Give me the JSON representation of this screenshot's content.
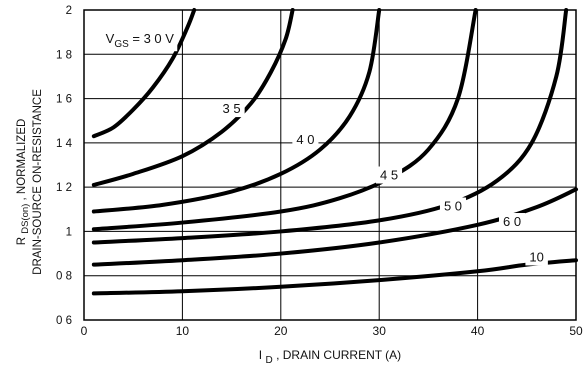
{
  "chart_data": {
    "type": "line",
    "title": "",
    "xlabel": {
      "prefix": "I",
      "subscript": "D",
      "rest": ", DRAIN CURRENT (A)"
    },
    "ylabel": {
      "line1_prefix": "R",
      "line1_subscript": "DS(on)",
      "line1_rest": ", NORMALIZED",
      "line2": "DRAIN-SOURCE ON-RESISTANCE"
    },
    "xlim": [
      0,
      50
    ],
    "ylim": [
      0.6,
      2.0
    ],
    "x_ticks": [
      {
        "value": 0,
        "label": "0"
      },
      {
        "value": 10,
        "label": "10"
      },
      {
        "value": 20,
        "label": "20"
      },
      {
        "value": 30,
        "label": "30"
      },
      {
        "value": 40,
        "label": "40"
      },
      {
        "value": 50,
        "label": "50"
      }
    ],
    "y_ticks": [
      {
        "value": 0.6,
        "label": "0 6"
      },
      {
        "value": 0.8,
        "label": "0 8"
      },
      {
        "value": 1.0,
        "label": "1"
      },
      {
        "value": 1.2,
        "label": "1 2"
      },
      {
        "value": 1.4,
        "label": "1 4"
      },
      {
        "value": 1.6,
        "label": "1 6"
      },
      {
        "value": 1.8,
        "label": "1 8"
      },
      {
        "value": 2.0,
        "label": "2"
      }
    ],
    "grid": true,
    "line_color": "#000000",
    "grid_color": "#000000",
    "series": [
      {
        "id": "vgs-3-0",
        "x": [
          1.0,
          3.0,
          5.0,
          7.0,
          9.0,
          10.5,
          11.2
        ],
        "y": [
          1.43,
          1.47,
          1.55,
          1.65,
          1.78,
          1.92,
          2.0
        ]
      },
      {
        "id": "vgs-3-5",
        "x": [
          1.0,
          5.0,
          10.0,
          14.0,
          17.0,
          19.0,
          20.5,
          21.2
        ],
        "y": [
          1.21,
          1.26,
          1.34,
          1.45,
          1.58,
          1.72,
          1.87,
          2.0
        ]
      },
      {
        "id": "vgs-4-0",
        "x": [
          1.0,
          8.0,
          15.0,
          20.0,
          24.0,
          27.0,
          29.0,
          30.0
        ],
        "y": [
          1.09,
          1.12,
          1.18,
          1.26,
          1.37,
          1.52,
          1.72,
          2.0
        ]
      },
      {
        "id": "vgs-4-5",
        "x": [
          1.0,
          10.0,
          20.0,
          26.0,
          31.0,
          35.0,
          38.0,
          39.8
        ],
        "y": [
          1.01,
          1.04,
          1.09,
          1.15,
          1.24,
          1.37,
          1.6,
          2.0
        ]
      },
      {
        "id": "vgs-5-0",
        "x": [
          1.0,
          10.0,
          20.0,
          30.0,
          37.0,
          42.0,
          45.5,
          48.0,
          49.0
        ],
        "y": [
          0.95,
          0.97,
          1.0,
          1.05,
          1.12,
          1.23,
          1.4,
          1.7,
          2.0
        ]
      },
      {
        "id": "vgs-6-0",
        "x": [
          1.0,
          10.0,
          20.0,
          30.0,
          40.0,
          46.0,
          50.0
        ],
        "y": [
          0.85,
          0.87,
          0.9,
          0.95,
          1.03,
          1.11,
          1.19
        ]
      },
      {
        "id": "vgs-10",
        "x": [
          1.0,
          10.0,
          20.0,
          30.0,
          40.0,
          45.0,
          50.0
        ],
        "y": [
          0.72,
          0.73,
          0.75,
          0.78,
          0.82,
          0.85,
          0.87
        ]
      }
    ],
    "curve_labels": [
      {
        "series": "vgs-3-0",
        "prefix": "V",
        "subscript": "GS",
        "rest": " = 3 0 V",
        "x": 2.2,
        "y": 1.85
      },
      {
        "series": "vgs-3-5",
        "text": "3 5",
        "x": 15.0,
        "y": 1.55
      },
      {
        "series": "vgs-4-0",
        "text": "4 0",
        "x": 22.5,
        "y": 1.41
      },
      {
        "series": "vgs-4-5",
        "text": "4 5",
        "x": 31.0,
        "y": 1.25
      },
      {
        "series": "vgs-5-0",
        "text": "5 0",
        "x": 37.5,
        "y": 1.11
      },
      {
        "series": "vgs-6-0",
        "text": "6 0",
        "x": 43.5,
        "y": 1.04
      },
      {
        "series": "vgs-10",
        "text": "10",
        "x": 46.0,
        "y": 0.88
      }
    ]
  }
}
